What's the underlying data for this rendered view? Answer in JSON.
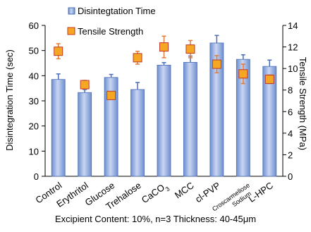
{
  "chart_data": {
    "type": "bar",
    "categories": [
      "Control",
      "Erythritol",
      "Glucose",
      "Trehalose",
      "CaCO3",
      "MCC",
      "cl-PVP",
      "Croscarmellose Sodium",
      "L-HPC"
    ],
    "category_labels": [
      {
        "main": "Control"
      },
      {
        "main": "Erythritol"
      },
      {
        "main": "Glucose"
      },
      {
        "main": "Trehalose"
      },
      {
        "main": "CaCO",
        "sub": "3"
      },
      {
        "main": "MCC"
      },
      {
        "main": "cl-PVP"
      },
      {
        "line1": "Croscarmellose",
        "line2": "Sodium"
      },
      {
        "main": "L-HPC"
      }
    ],
    "series": [
      {
        "name": "Disintegtation Time",
        "kind": "bar",
        "axis": "left",
        "color": "#8faadc",
        "values": [
          38.5,
          33.3,
          39.3,
          34.5,
          44.2,
          45.3,
          53.0,
          46.5,
          43.7
        ],
        "errors": [
          2.2,
          1.2,
          1.2,
          2.8,
          1.0,
          2.5,
          3.0,
          1.8,
          2.5
        ]
      },
      {
        "name": "Tensile Strength",
        "kind": "marker",
        "axis": "right",
        "color": "#f5a623",
        "values": [
          11.6,
          8.5,
          7.5,
          11.0,
          12.0,
          11.8,
          10.4,
          9.5,
          9.0
        ],
        "errors": [
          0.7,
          0.4,
          0.3,
          0.6,
          1.0,
          0.8,
          0.8,
          0.9,
          0.4
        ]
      }
    ],
    "ylabel": "Disintegration Time (sec)",
    "ylabel_right": "Tensile Strength (MPa)",
    "ylim": [
      0,
      60
    ],
    "yticks": [
      "0",
      "10",
      "20",
      "30",
      "40",
      "50",
      "60"
    ],
    "ylim_right": [
      0,
      14
    ],
    "yticks_right": [
      "0",
      "2",
      "4",
      "6",
      "8",
      "10",
      "12",
      "14"
    ],
    "grid": false,
    "legend_position": "top-left"
  },
  "footnote": "Excipient Content: 10%, n=3  Thickness: 40-45μm"
}
